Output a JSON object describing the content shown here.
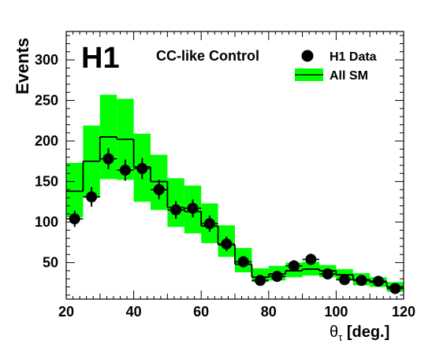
{
  "chart_data": {
    "type": "histogram",
    "logo": "H1",
    "subtitle": "CC-like Control",
    "xlabel": "θτ [deg.]",
    "xlabel_symbol": "θ",
    "xlabel_sub": "τ",
    "xlabel_unit": " [deg.]",
    "ylabel": "Events",
    "xlim": [
      20,
      120
    ],
    "ylim": [
      5,
      335
    ],
    "x_ticks": [
      20,
      40,
      60,
      80,
      100,
      120
    ],
    "y_ticks": [
      50,
      100,
      150,
      200,
      250,
      300
    ],
    "grid": false,
    "legend_position": "top-right",
    "bin_edges": [
      20,
      25,
      30,
      35,
      40,
      45,
      50,
      55,
      60,
      65,
      70,
      75,
      80,
      85,
      90,
      95,
      100,
      105,
      110,
      115,
      120
    ],
    "series": [
      {
        "name": "H1 Data",
        "kind": "points",
        "x": [
          22.5,
          27.5,
          32.5,
          37.5,
          42.5,
          47.5,
          52.5,
          57.5,
          62.5,
          67.5,
          72.5,
          77.5,
          82.5,
          87.5,
          92.5,
          97.5,
          102.5,
          107.5,
          112.5,
          117.5
        ],
        "values": [
          104,
          131,
          178,
          164,
          166,
          140,
          115,
          117,
          98,
          73,
          51,
          28,
          33,
          46,
          54,
          36,
          29,
          28,
          27,
          18
        ],
        "errors": [
          10,
          12,
          13,
          13,
          13,
          12,
          11,
          11,
          10,
          9,
          7,
          5,
          6,
          7,
          7,
          6,
          5,
          5,
          5,
          4
        ],
        "color": "#000000"
      },
      {
        "name": "All SM",
        "kind": "step-with-band",
        "values": [
          138,
          175,
          205,
          202,
          168,
          150,
          118,
          113,
          95,
          72,
          48,
          32,
          36,
          40,
          42,
          40,
          35,
          29,
          26,
          20
        ],
        "band_low": [
          106,
          131,
          153,
          152,
          125,
          115,
          94,
          86,
          74,
          57,
          38,
          26,
          28,
          32,
          34,
          32,
          28,
          22,
          20,
          14
        ],
        "band_high": [
          173,
          219,
          257,
          252,
          209,
          183,
          154,
          145,
          123,
          96,
          68,
          43,
          46,
          50,
          51,
          47,
          42,
          37,
          32,
          26
        ],
        "line_color": "#000000",
        "band_color": "#00ff00"
      }
    ]
  }
}
